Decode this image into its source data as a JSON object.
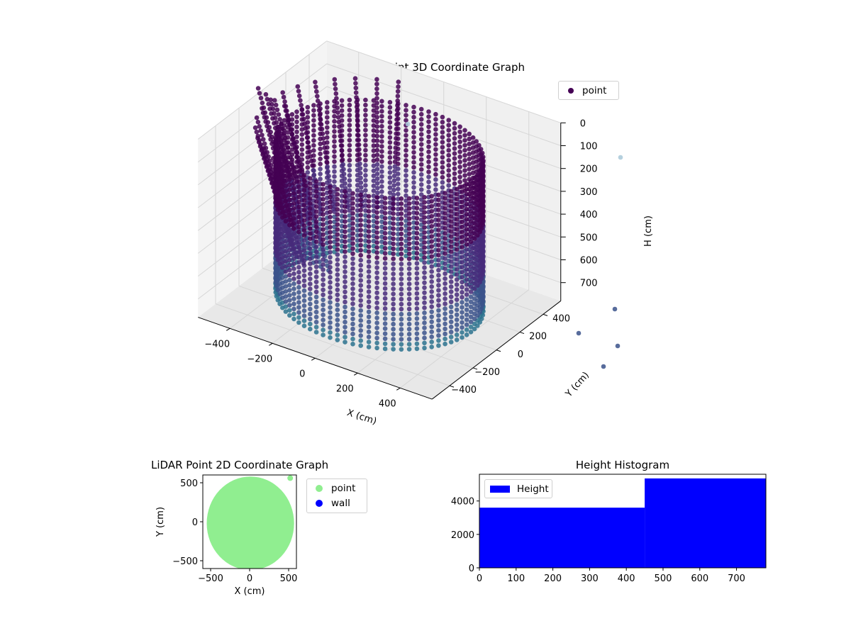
{
  "chart_data": [
    {
      "type": "scatter",
      "title": "LiDAR Point 3D Coordinate Graph",
      "xlabel": "X (cm)",
      "ylabel": "Y (cm)",
      "zlabel": "H (cm)",
      "xlim": [
        -550,
        550
      ],
      "ylim": [
        -550,
        550
      ],
      "zlim": [
        0,
        780
      ],
      "z_inverted": true,
      "x_ticks": [
        -400,
        -200,
        0,
        200,
        400
      ],
      "y_ticks": [
        -400,
        -200,
        0,
        200,
        400
      ],
      "z_ticks": [
        0,
        100,
        200,
        300,
        400,
        500,
        600,
        700
      ],
      "legend": {
        "entries": [
          "point"
        ],
        "position": "top-right"
      },
      "colormap": [
        "#440154",
        "#472a7a",
        "#3b528b",
        "#2c728e"
      ],
      "series": [
        {
          "name": "point",
          "description_shape": "cylinder radius ~430 cm, heights 0-780 cm, plus curved scan arcs"
        }
      ],
      "grid": true
    },
    {
      "type": "scatter",
      "title": "LiDAR Point 2D Coordinate Graph",
      "xlabel": "X (cm)",
      "ylabel": "Y (cm)",
      "xlim": [
        -600,
        600
      ],
      "ylim": [
        -600,
        600
      ],
      "x_ticks": [
        -500,
        0,
        500
      ],
      "y_ticks": [
        -500,
        0,
        500
      ],
      "legend": {
        "entries": [
          "point",
          "wall"
        ],
        "position": "outside-right"
      },
      "series": [
        {
          "name": "point",
          "color": "#90ee90"
        },
        {
          "name": "wall",
          "color": "#0000ff"
        }
      ]
    },
    {
      "type": "bar",
      "title": "Height Histogram",
      "legend": {
        "entries": [
          "Height"
        ],
        "position": "upper-left"
      },
      "xlim": [
        0,
        780
      ],
      "ylim": [
        0,
        5600
      ],
      "x_ticks": [
        0,
        100,
        200,
        300,
        400,
        500,
        600,
        700
      ],
      "y_ticks": [
        0,
        2000,
        4000
      ],
      "bins": [
        {
          "from": 0,
          "to": 450,
          "count": 3600
        },
        {
          "from": 450,
          "to": 780,
          "count": 5350
        }
      ],
      "color": "#0000ff"
    }
  ]
}
